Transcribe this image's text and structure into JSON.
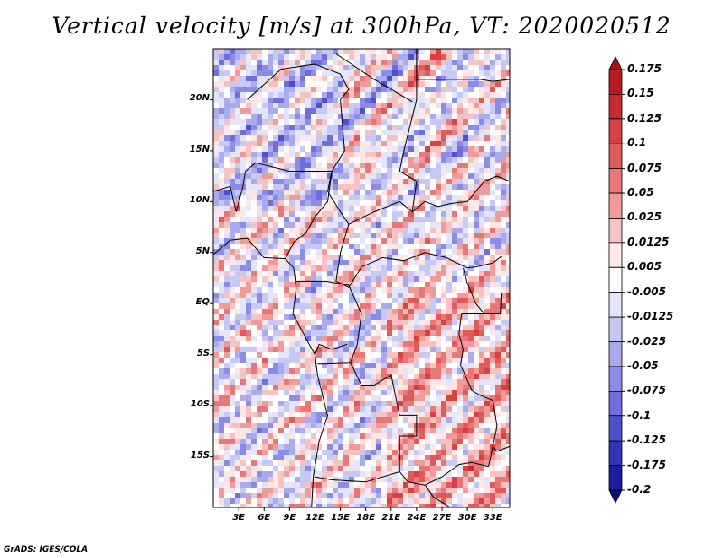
{
  "title": "Vertical velocity [m/s] at 300hPa, VT: 2020020512",
  "footer": "GrADS: IGES/COLA",
  "lat_labels": [
    "20N",
    "15N",
    "10N",
    "5N",
    "EQ",
    "5S",
    "10S",
    "15S"
  ],
  "lon_labels": [
    "3E",
    "6E",
    "9E",
    "12E",
    "15E",
    "18E",
    "21E",
    "24E",
    "27E",
    "30E",
    "33E"
  ],
  "colorbar": {
    "labels": [
      "0.175",
      "0.15",
      "0.125",
      "0.1",
      "0.075",
      "0.05",
      "0.025",
      "0.0125",
      "0.005",
      "-0.005",
      "-0.0125",
      "-0.025",
      "-0.05",
      "-0.075",
      "-0.1",
      "-0.125",
      "-0.175",
      "-0.2"
    ],
    "colors": [
      "#a50f15",
      "#b81c22",
      "#c82d2e",
      "#d64141",
      "#e05a5a",
      "#e87878",
      "#f09a9a",
      "#f7c2c2",
      "#fde7e7",
      "#ffffff",
      "#e4e4fb",
      "#c8c8f5",
      "#aaaaef",
      "#8c8ce6",
      "#6e6edc",
      "#5050cc",
      "#3434b8",
      "#1c1ca0",
      "#0a0a80"
    ]
  },
  "map": {
    "lon_range": [
      0,
      35
    ],
    "lat_range": [
      -20,
      25
    ]
  }
}
